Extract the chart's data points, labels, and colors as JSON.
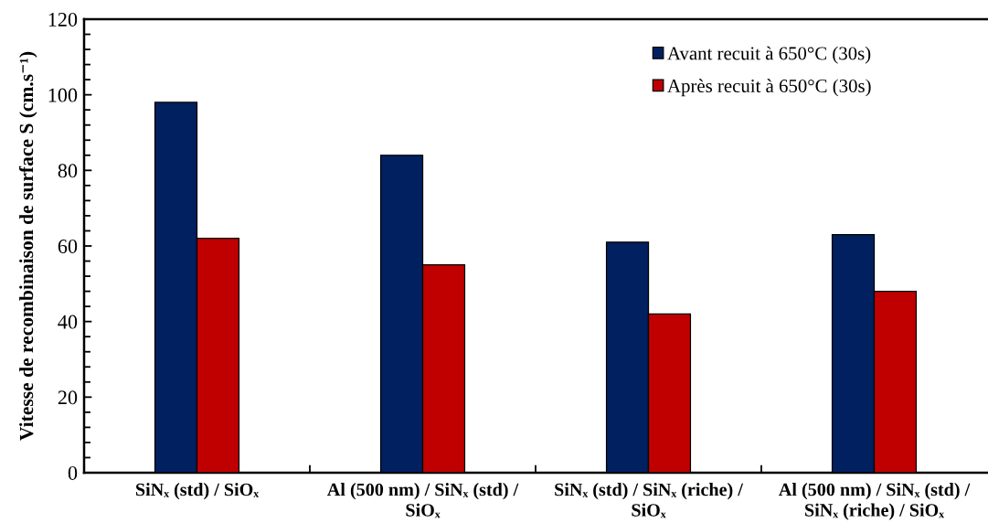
{
  "chart_data": {
    "type": "bar",
    "ylabel": "Vitesse de recombinaison de surface S (cm.s⁻¹)",
    "categories": [
      "SiNₓ (std) / SiOₓ",
      "Al (500 nm) / SiNₓ (std) / SiOₓ",
      "SiNₓ (std) / SiNₓ (riche) / SiOₓ",
      "Al (500 nm) / SiNₓ (std) / SiNₓ (riche) / SiOₓ"
    ],
    "series": [
      {
        "name": "Avant recuit à 650°C (30s)",
        "color": "#002060",
        "values": [
          98,
          84,
          61,
          63
        ]
      },
      {
        "name": "Après recuit à 650°C (30s)",
        "color": "#c00000",
        "values": [
          62,
          55,
          42,
          48
        ]
      }
    ],
    "ylim": [
      0,
      120
    ],
    "yticks": [
      0,
      {
        "value": 4,
        "label": null
      },
      {
        "value": 8,
        "label": null
      },
      {
        "value": 12,
        "label": null
      },
      {
        "value": 16,
        "label": null
      },
      20,
      {
        "value": 24,
        "label": null
      },
      {
        "value": 28,
        "label": null
      },
      {
        "value": 32,
        "label": null
      },
      {
        "value": 36,
        "label": null
      },
      40,
      {
        "value": 44,
        "label": null
      },
      {
        "value": 48,
        "label": null
      },
      {
        "value": 52,
        "label": null
      },
      {
        "value": 56,
        "label": null
      },
      60,
      {
        "value": 64,
        "label": null
      },
      {
        "value": 68,
        "label": null
      },
      {
        "value": 72,
        "label": null
      },
      {
        "value": 76,
        "label": null
      },
      80,
      {
        "value": 84,
        "label": null
      },
      {
        "value": 88,
        "label": null
      },
      {
        "value": 92,
        "label": null
      },
      {
        "value": 96,
        "label": null
      },
      100,
      {
        "value": 104,
        "label": null
      },
      {
        "value": 108,
        "label": null
      },
      {
        "value": 112,
        "label": null
      },
      {
        "value": 116,
        "label": null
      },
      120
    ],
    "legend": "top right"
  }
}
